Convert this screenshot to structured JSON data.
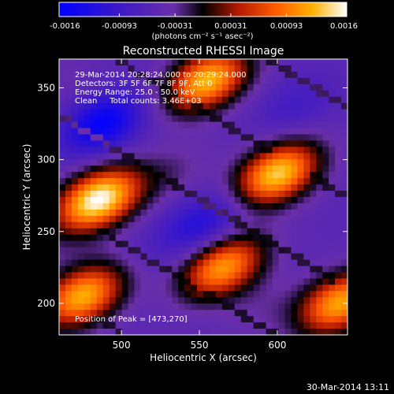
{
  "colorbar": {
    "ticks": [
      "-0.0016",
      "-0.00093",
      "-0.00031",
      "0.00031",
      "0.00093",
      "0.0016"
    ],
    "tick_values": [
      -0.0016,
      -0.00093,
      -0.00031,
      0.00031,
      0.00093,
      0.0016
    ],
    "unit_label": "(photons cm⁻² s⁻¹ asec⁻²)",
    "colormap": [
      "#0000ff",
      "#3a18c8",
      "#6a2fa8",
      "#000000",
      "#b01800",
      "#ff5a00",
      "#ffb000",
      "#ffffff"
    ]
  },
  "chart_data": {
    "type": "heatmap",
    "title": "Reconstructed RHESSI Image",
    "xlabel": "Heliocentric X (arcsec)",
    "ylabel": "Heliocentric Y (arcsec)",
    "xlim": [
      460,
      645
    ],
    "ylim": [
      178,
      370
    ],
    "xticks": [
      "500",
      "550",
      "600"
    ],
    "xtick_values": [
      500,
      550,
      600
    ],
    "yticks": [
      "200",
      "250",
      "300",
      "350"
    ],
    "ytick_values": [
      200,
      250,
      300,
      350
    ],
    "annotations": [
      "29-Mar-2014 20:28:24.000 to 20:29:24.000",
      "Detectors: 3F 5F 6F 7F 8F 9F, Att 0",
      "Energy Range: 25.0 - 50.0 keV",
      "Clean     Total counts: 3.46E+03"
    ],
    "peak_label": "Position of Peak = [473,270]",
    "peak": [
      473,
      270
    ],
    "blobs": [
      {
        "x": 485,
        "y": 272,
        "value": 0.0016
      },
      {
        "x": 600,
        "y": 290,
        "value": 0.00135
      },
      {
        "x": 555,
        "y": 355,
        "value": 0.00125
      },
      {
        "x": 475,
        "y": 205,
        "value": 0.0012
      },
      {
        "x": 640,
        "y": 200,
        "value": 0.00115
      },
      {
        "x": 565,
        "y": 225,
        "value": 0.0011
      },
      {
        "x": 488,
        "y": 325,
        "value": -0.00155
      },
      {
        "x": 552,
        "y": 255,
        "value": -0.0012
      },
      {
        "x": 612,
        "y": 338,
        "value": -0.00085
      },
      {
        "x": 520,
        "y": 240,
        "value": -0.0006
      },
      {
        "x": 640,
        "y": 260,
        "value": -0.00055
      },
      {
        "x": 590,
        "y": 195,
        "value": -0.00035
      },
      {
        "x": 460,
        "y": 355,
        "value": -0.0004
      },
      {
        "x": 530,
        "y": 290,
        "value": -0.00025
      },
      {
        "x": 450,
        "y": 240,
        "value": -0.0004
      }
    ]
  },
  "footer": {
    "timestamp": "30-Mar-2014 13:11"
  }
}
